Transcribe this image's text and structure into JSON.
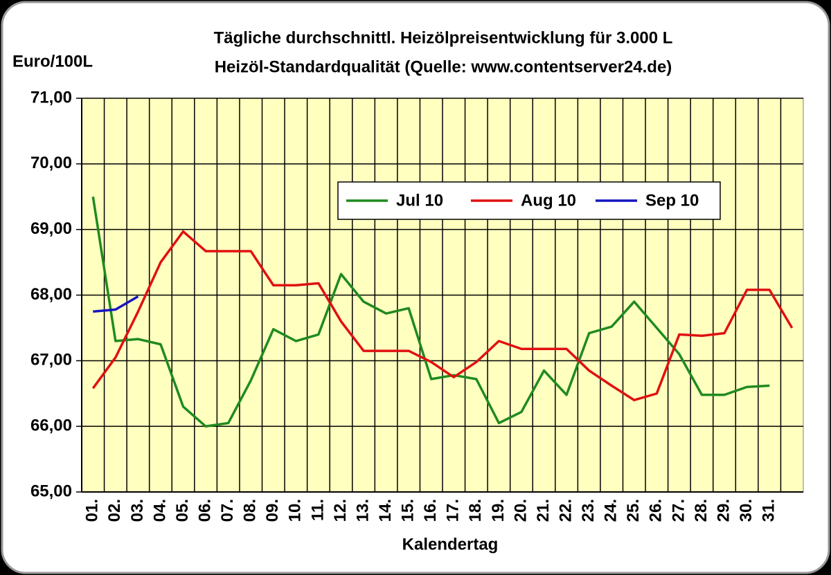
{
  "chart_data": {
    "type": "line",
    "title": "Tägliche durchschnittl. Heizölpreisentwicklung für 3.000 L",
    "subtitle": "Heizöl-Standardqualität (Quelle: www.contentserver24.de)",
    "y_label": "Euro/100L",
    "x_label": "Kalendertag",
    "categories": [
      "01.",
      "02.",
      "03.",
      "04.",
      "05.",
      "06.",
      "07.",
      "08.",
      "09.",
      "10.",
      "11.",
      "12.",
      "13.",
      "14.",
      "15.",
      "16.",
      "17.",
      "18.",
      "19.",
      "20.",
      "21.",
      "22.",
      "23.",
      "24.",
      "25.",
      "26.",
      "27.",
      "28.",
      "29.",
      "30.",
      "31.",
      null
    ],
    "series": [
      {
        "name": "Jul 10",
        "color": "#1f8a1f",
        "values": [
          69.5,
          67.3,
          67.33,
          67.25,
          66.3,
          66.0,
          66.05,
          66.7,
          67.48,
          67.3,
          67.4,
          68.32,
          67.9,
          67.72,
          67.8,
          66.72,
          66.78,
          66.72,
          66.05,
          66.22,
          66.85,
          66.48,
          67.42,
          67.52,
          67.9,
          67.5,
          67.1,
          66.48,
          66.48,
          66.6,
          66.62,
          null
        ]
      },
      {
        "name": "Aug 10",
        "color": "#e01010",
        "values": [
          66.58,
          67.05,
          67.75,
          68.5,
          68.97,
          68.67,
          68.67,
          68.67,
          68.15,
          68.15,
          68.18,
          67.6,
          67.15,
          67.15,
          67.15,
          66.98,
          66.75,
          66.98,
          67.3,
          67.18,
          67.18,
          67.18,
          66.85,
          66.62,
          66.4,
          66.5,
          67.4,
          67.38,
          67.42,
          68.08,
          68.08,
          67.5
        ]
      },
      {
        "name": "Sep 10",
        "color": "#1515c0",
        "values": [
          67.75,
          67.78,
          67.98,
          null,
          null,
          null,
          null,
          null,
          null,
          null,
          null,
          null,
          null,
          null,
          null,
          null,
          null,
          null,
          null,
          null,
          null,
          null,
          null,
          null,
          null,
          null,
          null,
          null,
          null,
          null,
          null,
          null
        ]
      }
    ],
    "ylim": [
      65,
      71
    ],
    "yticks": [
      {
        "value": 65,
        "label": "65,00"
      },
      {
        "value": 66,
        "label": "66,00"
      },
      {
        "value": 67,
        "label": "67,00"
      },
      {
        "value": 68,
        "label": "68,00"
      },
      {
        "value": 69,
        "label": "69,00"
      },
      {
        "value": 70,
        "label": "70,00"
      },
      {
        "value": 71,
        "label": "71,00"
      }
    ],
    "grid": true,
    "legend": "upper center",
    "plot_background": "#ffffc0"
  }
}
